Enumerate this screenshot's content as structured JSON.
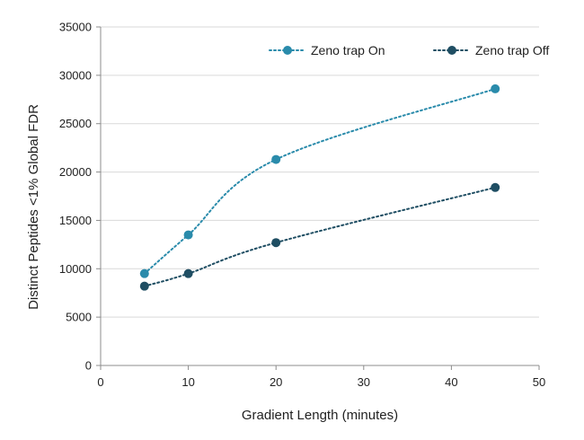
{
  "chart_data": {
    "type": "line",
    "title": "",
    "xlabel": "Gradient  Length (minutes)",
    "ylabel": "Distinct Peptides <1% Global FDR",
    "xlim": [
      0,
      50
    ],
    "ylim": [
      0,
      35000
    ],
    "xticks": [
      0,
      10,
      20,
      30,
      40,
      50
    ],
    "yticks": [
      0,
      5000,
      10000,
      15000,
      20000,
      25000,
      30000,
      35000
    ],
    "grid": "horizontal",
    "legend_position": "top-right",
    "series": [
      {
        "name": "Zeno trap On",
        "color": "#2a8bab",
        "line_style": "dotted",
        "smoothed": true,
        "x": [
          5,
          10,
          20,
          45
        ],
        "y": [
          9500,
          13500,
          21300,
          28600
        ]
      },
      {
        "name": "Zeno trap Off",
        "color": "#1f4e63",
        "line_style": "dotted",
        "smoothed": true,
        "x": [
          5,
          10,
          20,
          45
        ],
        "y": [
          8200,
          9500,
          12700,
          18400
        ]
      }
    ]
  }
}
